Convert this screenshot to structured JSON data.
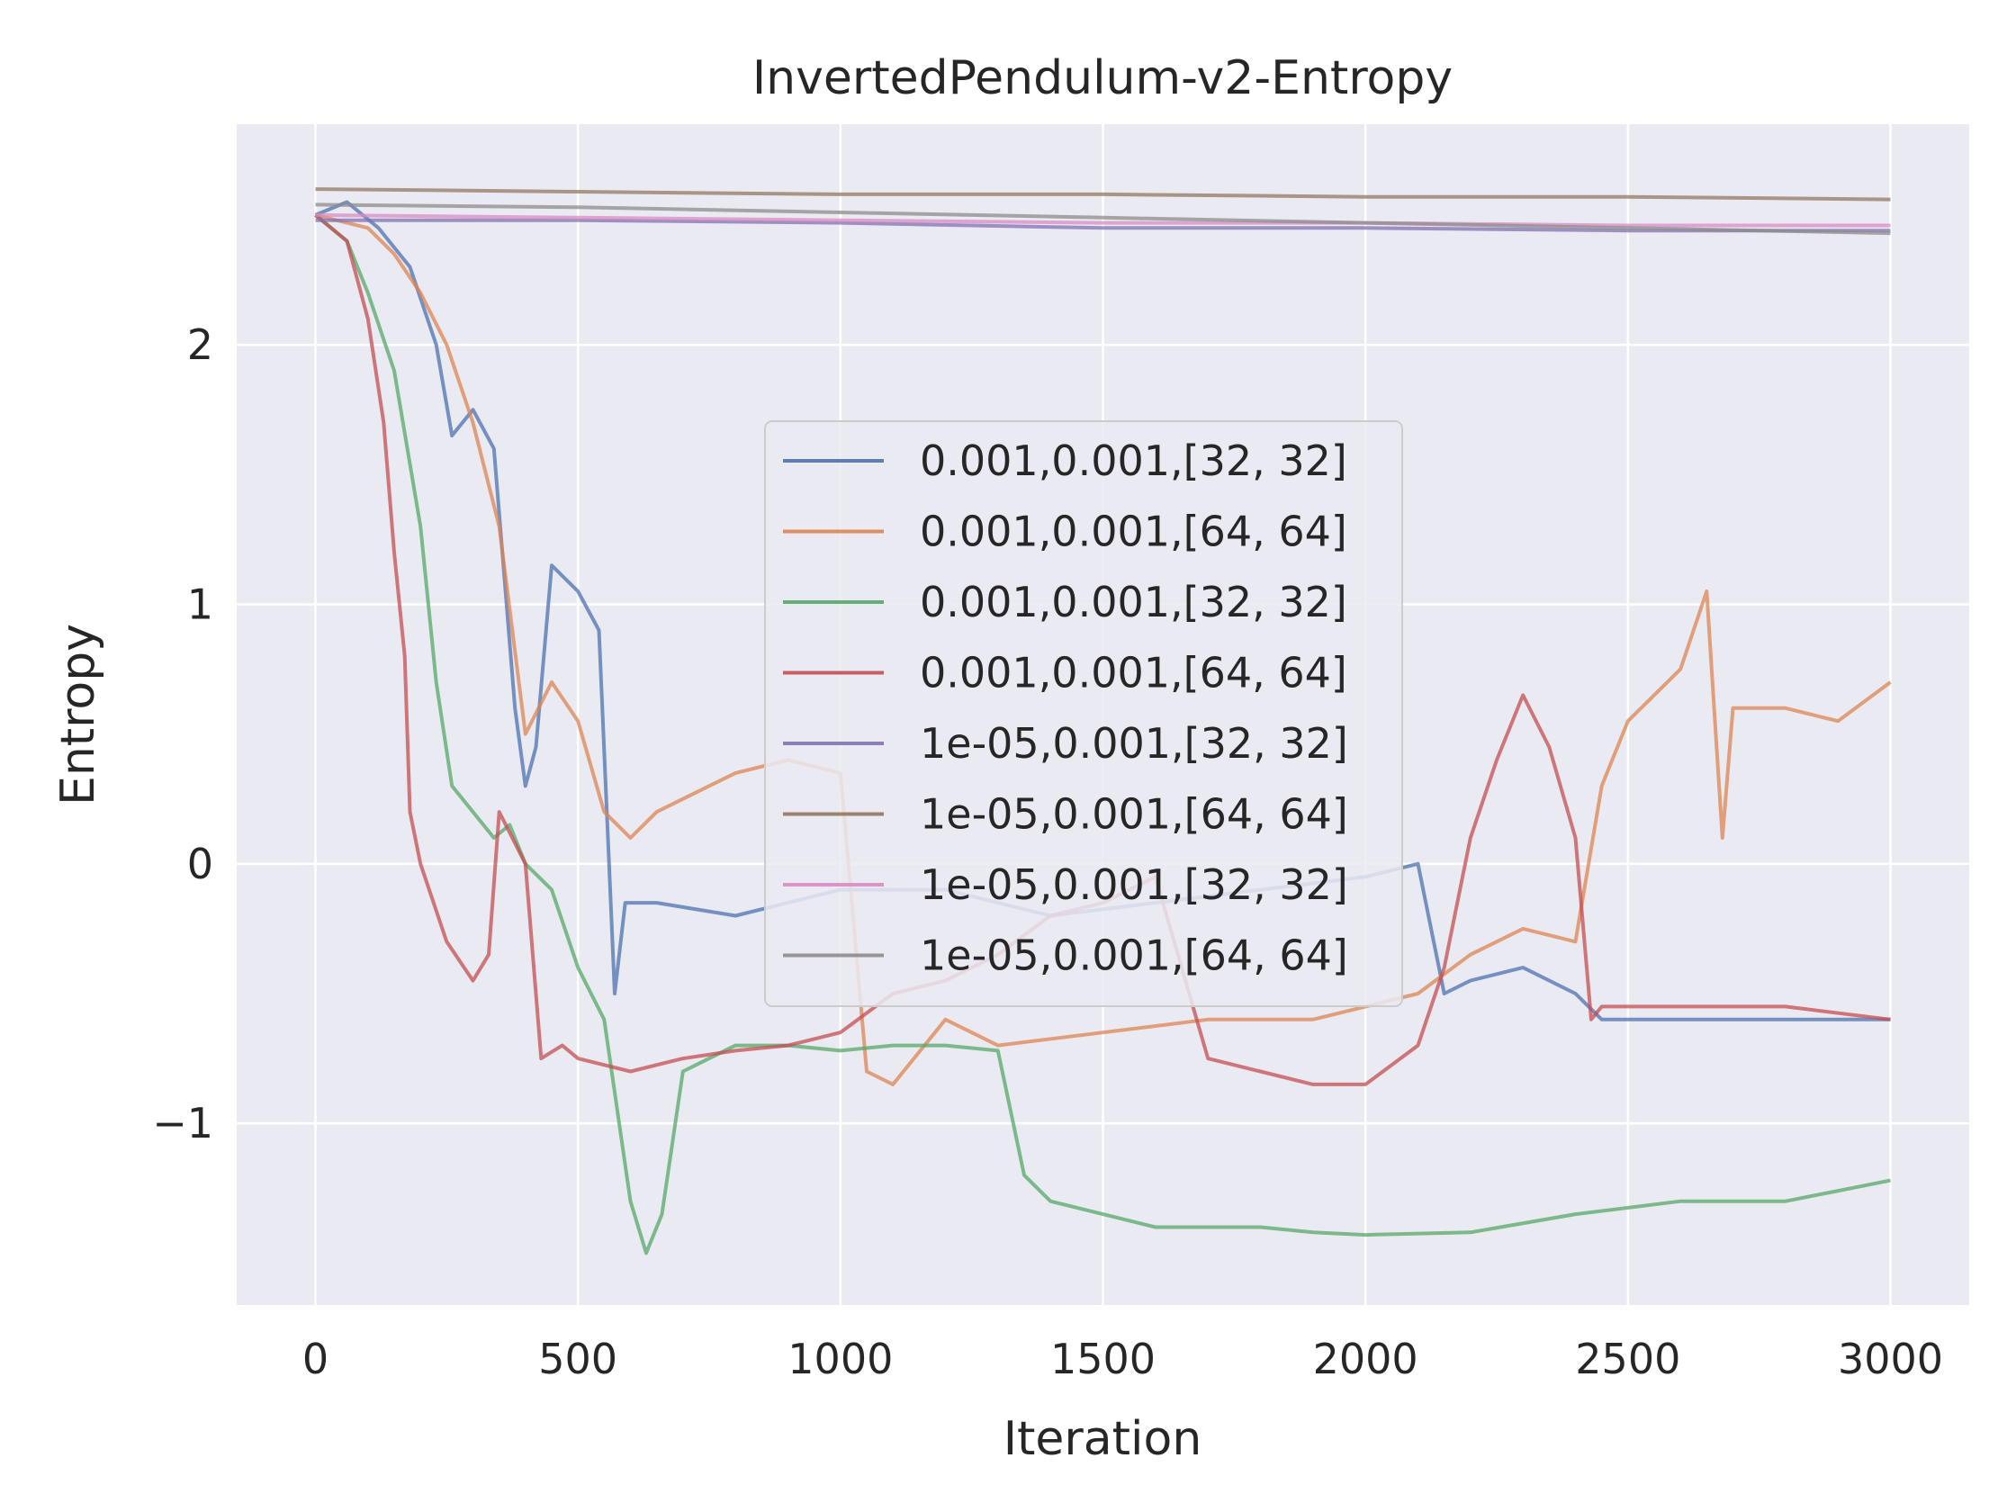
{
  "chart_data": {
    "type": "line",
    "title": "InvertedPendulum-v2-Entropy",
    "xlabel": "Iteration",
    "ylabel": "Entropy",
    "xlim": [
      -150,
      3150
    ],
    "ylim": [
      -1.7,
      2.85
    ],
    "xticks": [
      0,
      500,
      1000,
      1500,
      2000,
      2500,
      3000
    ],
    "yticks": [
      -1,
      0,
      1,
      2
    ],
    "xtick_labels": [
      "0",
      "500",
      "1000",
      "1500",
      "2000",
      "2500",
      "3000"
    ],
    "ytick_labels": [
      "−1",
      "0",
      "1",
      "2"
    ],
    "grid": true,
    "background": "#eaeaf2",
    "legend_position": "center",
    "series": [
      {
        "name": "0.001,0.001,[32, 32]",
        "color": "#4c72b0",
        "x": [
          0,
          60,
          120,
          180,
          230,
          260,
          300,
          340,
          380,
          400,
          420,
          450,
          500,
          540,
          570,
          590,
          650,
          800,
          1000,
          1200,
          1400,
          1600,
          1800,
          2000,
          2100,
          2150,
          2200,
          2300,
          2400,
          2450,
          2600,
          2800,
          3000
        ],
        "y": [
          2.5,
          2.55,
          2.45,
          2.3,
          2.0,
          1.65,
          1.75,
          1.6,
          0.6,
          0.3,
          0.45,
          1.15,
          1.05,
          0.9,
          -0.5,
          -0.15,
          -0.15,
          -0.2,
          -0.1,
          -0.1,
          -0.2,
          -0.15,
          -0.1,
          -0.05,
          0.0,
          -0.5,
          -0.45,
          -0.4,
          -0.5,
          -0.6,
          -0.6,
          -0.6,
          -0.6
        ]
      },
      {
        "name": "0.001,0.001,[64, 64]",
        "color": "#dd8452",
        "x": [
          0,
          100,
          150,
          200,
          250,
          300,
          350,
          400,
          450,
          500,
          550,
          600,
          650,
          700,
          800,
          900,
          1000,
          1050,
          1100,
          1200,
          1300,
          1500,
          1700,
          1800,
          1900,
          2000,
          2100,
          2200,
          2300,
          2400,
          2450,
          2500,
          2600,
          2650,
          2680,
          2700,
          2800,
          2900,
          3000
        ],
        "y": [
          2.5,
          2.45,
          2.35,
          2.2,
          2.0,
          1.7,
          1.3,
          0.5,
          0.7,
          0.55,
          0.2,
          0.1,
          0.2,
          0.25,
          0.35,
          0.4,
          0.35,
          -0.8,
          -0.85,
          -0.6,
          -0.7,
          -0.65,
          -0.6,
          -0.6,
          -0.6,
          -0.55,
          -0.5,
          -0.35,
          -0.25,
          -0.3,
          0.3,
          0.55,
          0.75,
          1.05,
          0.1,
          0.6,
          0.6,
          0.55,
          0.7
        ]
      },
      {
        "name": "0.001,0.001,[32, 32]",
        "color": "#55a868",
        "x": [
          0,
          60,
          100,
          150,
          200,
          230,
          260,
          300,
          340,
          370,
          400,
          450,
          500,
          550,
          600,
          630,
          660,
          700,
          800,
          900,
          1000,
          1100,
          1200,
          1300,
          1350,
          1400,
          1500,
          1600,
          1700,
          1800,
          1900,
          2000,
          2200,
          2400,
          2600,
          2800,
          3000
        ],
        "y": [
          2.5,
          2.4,
          2.2,
          1.9,
          1.3,
          0.7,
          0.3,
          0.2,
          0.1,
          0.15,
          0.0,
          -0.1,
          -0.4,
          -0.6,
          -1.3,
          -1.5,
          -1.35,
          -0.8,
          -0.7,
          -0.7,
          -0.72,
          -0.7,
          -0.7,
          -0.72,
          -1.2,
          -1.3,
          -1.35,
          -1.4,
          -1.4,
          -1.4,
          -1.42,
          -1.43,
          -1.42,
          -1.35,
          -1.3,
          -1.3,
          -1.22
        ]
      },
      {
        "name": "0.001,0.001,[64, 64]",
        "color": "#c44e52",
        "x": [
          0,
          60,
          100,
          130,
          150,
          170,
          180,
          200,
          250,
          300,
          330,
          350,
          400,
          430,
          470,
          500,
          600,
          700,
          800,
          900,
          1000,
          1100,
          1200,
          1300,
          1400,
          1500,
          1600,
          1700,
          1800,
          1900,
          2000,
          2100,
          2150,
          2200,
          2250,
          2300,
          2350,
          2400,
          2430,
          2450,
          2600,
          2800,
          3000
        ],
        "y": [
          2.5,
          2.4,
          2.1,
          1.7,
          1.2,
          0.8,
          0.2,
          0.0,
          -0.3,
          -0.45,
          -0.35,
          0.2,
          0.0,
          -0.75,
          -0.7,
          -0.75,
          -0.8,
          -0.75,
          -0.72,
          -0.7,
          -0.65,
          -0.5,
          -0.45,
          -0.35,
          -0.2,
          -0.15,
          -0.05,
          -0.75,
          -0.8,
          -0.85,
          -0.85,
          -0.7,
          -0.4,
          0.1,
          0.4,
          0.65,
          0.45,
          0.1,
          -0.6,
          -0.55,
          -0.55,
          -0.55,
          -0.6
        ]
      },
      {
        "name": "1e-05,0.001,[32, 32]",
        "color": "#8172b3",
        "x": [
          0,
          500,
          1000,
          1500,
          2000,
          2500,
          3000
        ],
        "y": [
          2.48,
          2.48,
          2.47,
          2.45,
          2.45,
          2.44,
          2.44
        ]
      },
      {
        "name": "1e-05,0.001,[64, 64]",
        "color": "#937860",
        "x": [
          0,
          500,
          1000,
          1500,
          2000,
          2500,
          3000
        ],
        "y": [
          2.6,
          2.59,
          2.58,
          2.58,
          2.57,
          2.57,
          2.56
        ]
      },
      {
        "name": "1e-05,0.001,[32, 32]",
        "color": "#da8bc3",
        "x": [
          0,
          500,
          1000,
          1500,
          2000,
          2500,
          3000
        ],
        "y": [
          2.5,
          2.49,
          2.48,
          2.47,
          2.47,
          2.46,
          2.46
        ]
      },
      {
        "name": "1e-05,0.001,[64, 64]",
        "color": "#8c8c8c",
        "x": [
          0,
          500,
          1000,
          1500,
          2000,
          2500,
          3000
        ],
        "y": [
          2.54,
          2.53,
          2.51,
          2.49,
          2.47,
          2.45,
          2.43
        ]
      }
    ]
  }
}
